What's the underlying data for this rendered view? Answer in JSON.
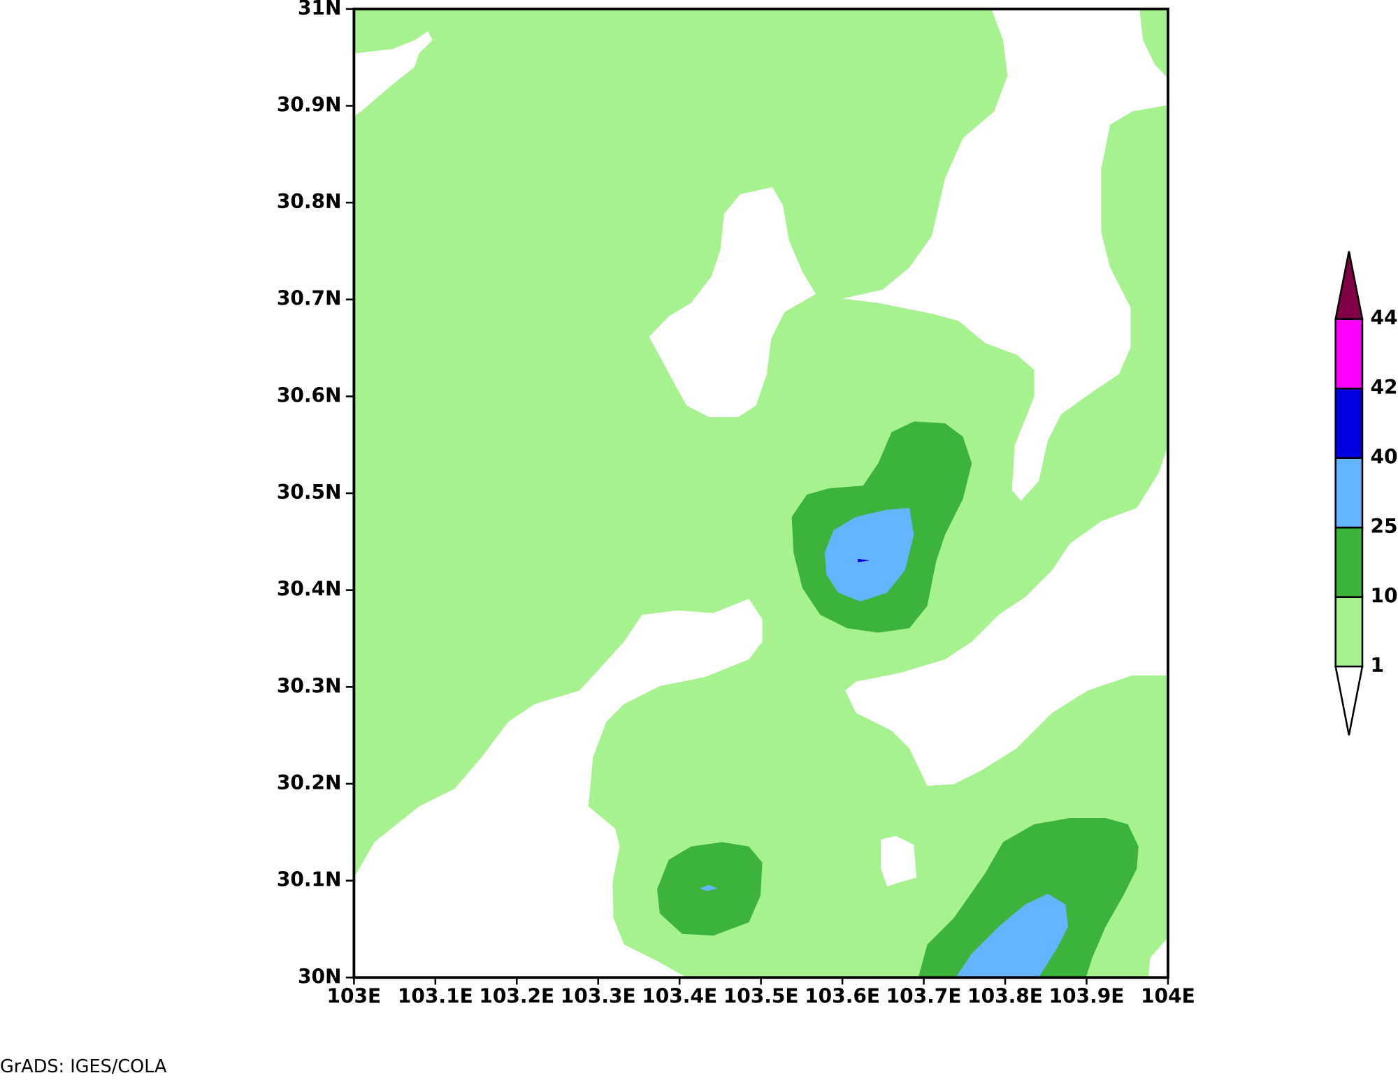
{
  "map": {
    "type": "contour",
    "xlim": [
      103,
      104
    ],
    "ylim": [
      30,
      31
    ],
    "xticks": [
      {
        "value": 103,
        "label": "103E"
      },
      {
        "value": 103.1,
        "label": "103.1E"
      },
      {
        "value": 103.2,
        "label": "103.2E"
      },
      {
        "value": 103.3,
        "label": "103.3E"
      },
      {
        "value": 103.4,
        "label": "103.4E"
      },
      {
        "value": 103.5,
        "label": "103.5E"
      },
      {
        "value": 103.6,
        "label": "103.6E"
      },
      {
        "value": 103.7,
        "label": "103.7E"
      },
      {
        "value": 103.8,
        "label": "103.8E"
      },
      {
        "value": 103.9,
        "label": "103.9E"
      },
      {
        "value": 104,
        "label": "104E"
      }
    ],
    "yticks": [
      {
        "value": 30,
        "label": "30N"
      },
      {
        "value": 30.1,
        "label": "30.1N"
      },
      {
        "value": 30.2,
        "label": "30.2N"
      },
      {
        "value": 30.3,
        "label": "30.3N"
      },
      {
        "value": 30.4,
        "label": "30.4N"
      },
      {
        "value": 30.5,
        "label": "30.5N"
      },
      {
        "value": 30.6,
        "label": "30.6N"
      },
      {
        "value": 30.7,
        "label": "30.7N"
      },
      {
        "value": 30.8,
        "label": "30.8N"
      },
      {
        "value": 30.9,
        "label": "30.9N"
      },
      {
        "value": 31,
        "label": "31N"
      }
    ],
    "colorbar": {
      "levels": [
        1,
        10,
        25,
        40,
        42,
        44
      ],
      "colors": [
        "#ffffff",
        "#a6f28f",
        "#3cb43c",
        "#64b4ff",
        "#0000e1",
        "#ff00ff",
        "#820046"
      ]
    }
  },
  "footer": "GrADS: IGES/COLA"
}
